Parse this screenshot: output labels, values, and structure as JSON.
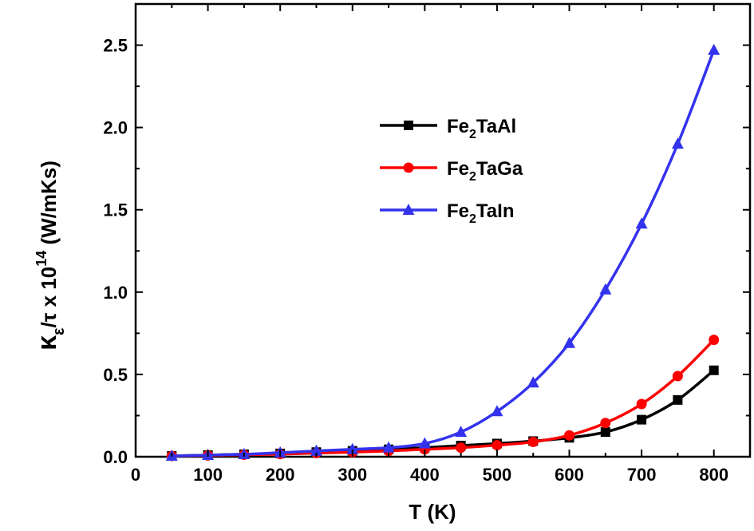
{
  "chart_data": {
    "type": "line",
    "xlabel": "T (K)",
    "ylabel": {
      "kappa": "κ",
      "sub": "ε",
      "rest": "/τ x 10",
      "sup": "14",
      "units": " (W/mKs)"
    },
    "xlim": [
      0,
      850
    ],
    "ylim": [
      0,
      2.75
    ],
    "xticks": [
      0,
      100,
      200,
      300,
      400,
      500,
      600,
      700,
      800
    ],
    "yticks": [
      0.0,
      0.5,
      1.0,
      1.5,
      2.0,
      2.5
    ],
    "xtick_labels": [
      "0",
      "100",
      "200",
      "300",
      "400",
      "500",
      "600",
      "700",
      "800"
    ],
    "ytick_labels": [
      "0.0",
      "0.5",
      "1.0",
      "1.5",
      "2.0",
      "2.5"
    ],
    "legend_position": "upper-middle",
    "x": [
      50,
      100,
      150,
      200,
      250,
      300,
      350,
      400,
      450,
      500,
      550,
      600,
      650,
      700,
      750,
      800
    ],
    "series": [
      {
        "name": "Fe2TaAl",
        "name_parts": [
          "Fe",
          "2",
          "TaAl"
        ],
        "color": "#000000",
        "marker": "square",
        "values": [
          0.005,
          0.01,
          0.015,
          0.02,
          0.028,
          0.036,
          0.045,
          0.055,
          0.068,
          0.08,
          0.095,
          0.115,
          0.15,
          0.225,
          0.345,
          0.525
        ]
      },
      {
        "name": "Fe2TaGa",
        "name_parts": [
          "Fe",
          "2",
          "TaGa"
        ],
        "color": "#ff0000",
        "marker": "circle",
        "values": [
          0.005,
          0.008,
          0.012,
          0.016,
          0.022,
          0.028,
          0.035,
          0.045,
          0.055,
          0.07,
          0.09,
          0.13,
          0.205,
          0.32,
          0.49,
          0.71
        ]
      },
      {
        "name": "Fe2TaIn",
        "name_parts": [
          "Fe",
          "2",
          "TaIn"
        ],
        "color": "#3333ee",
        "marker": "triangle",
        "values": [
          0.005,
          0.01,
          0.015,
          0.025,
          0.035,
          0.045,
          0.055,
          0.08,
          0.15,
          0.275,
          0.45,
          0.69,
          1.015,
          1.415,
          1.9,
          2.47
        ]
      }
    ]
  }
}
